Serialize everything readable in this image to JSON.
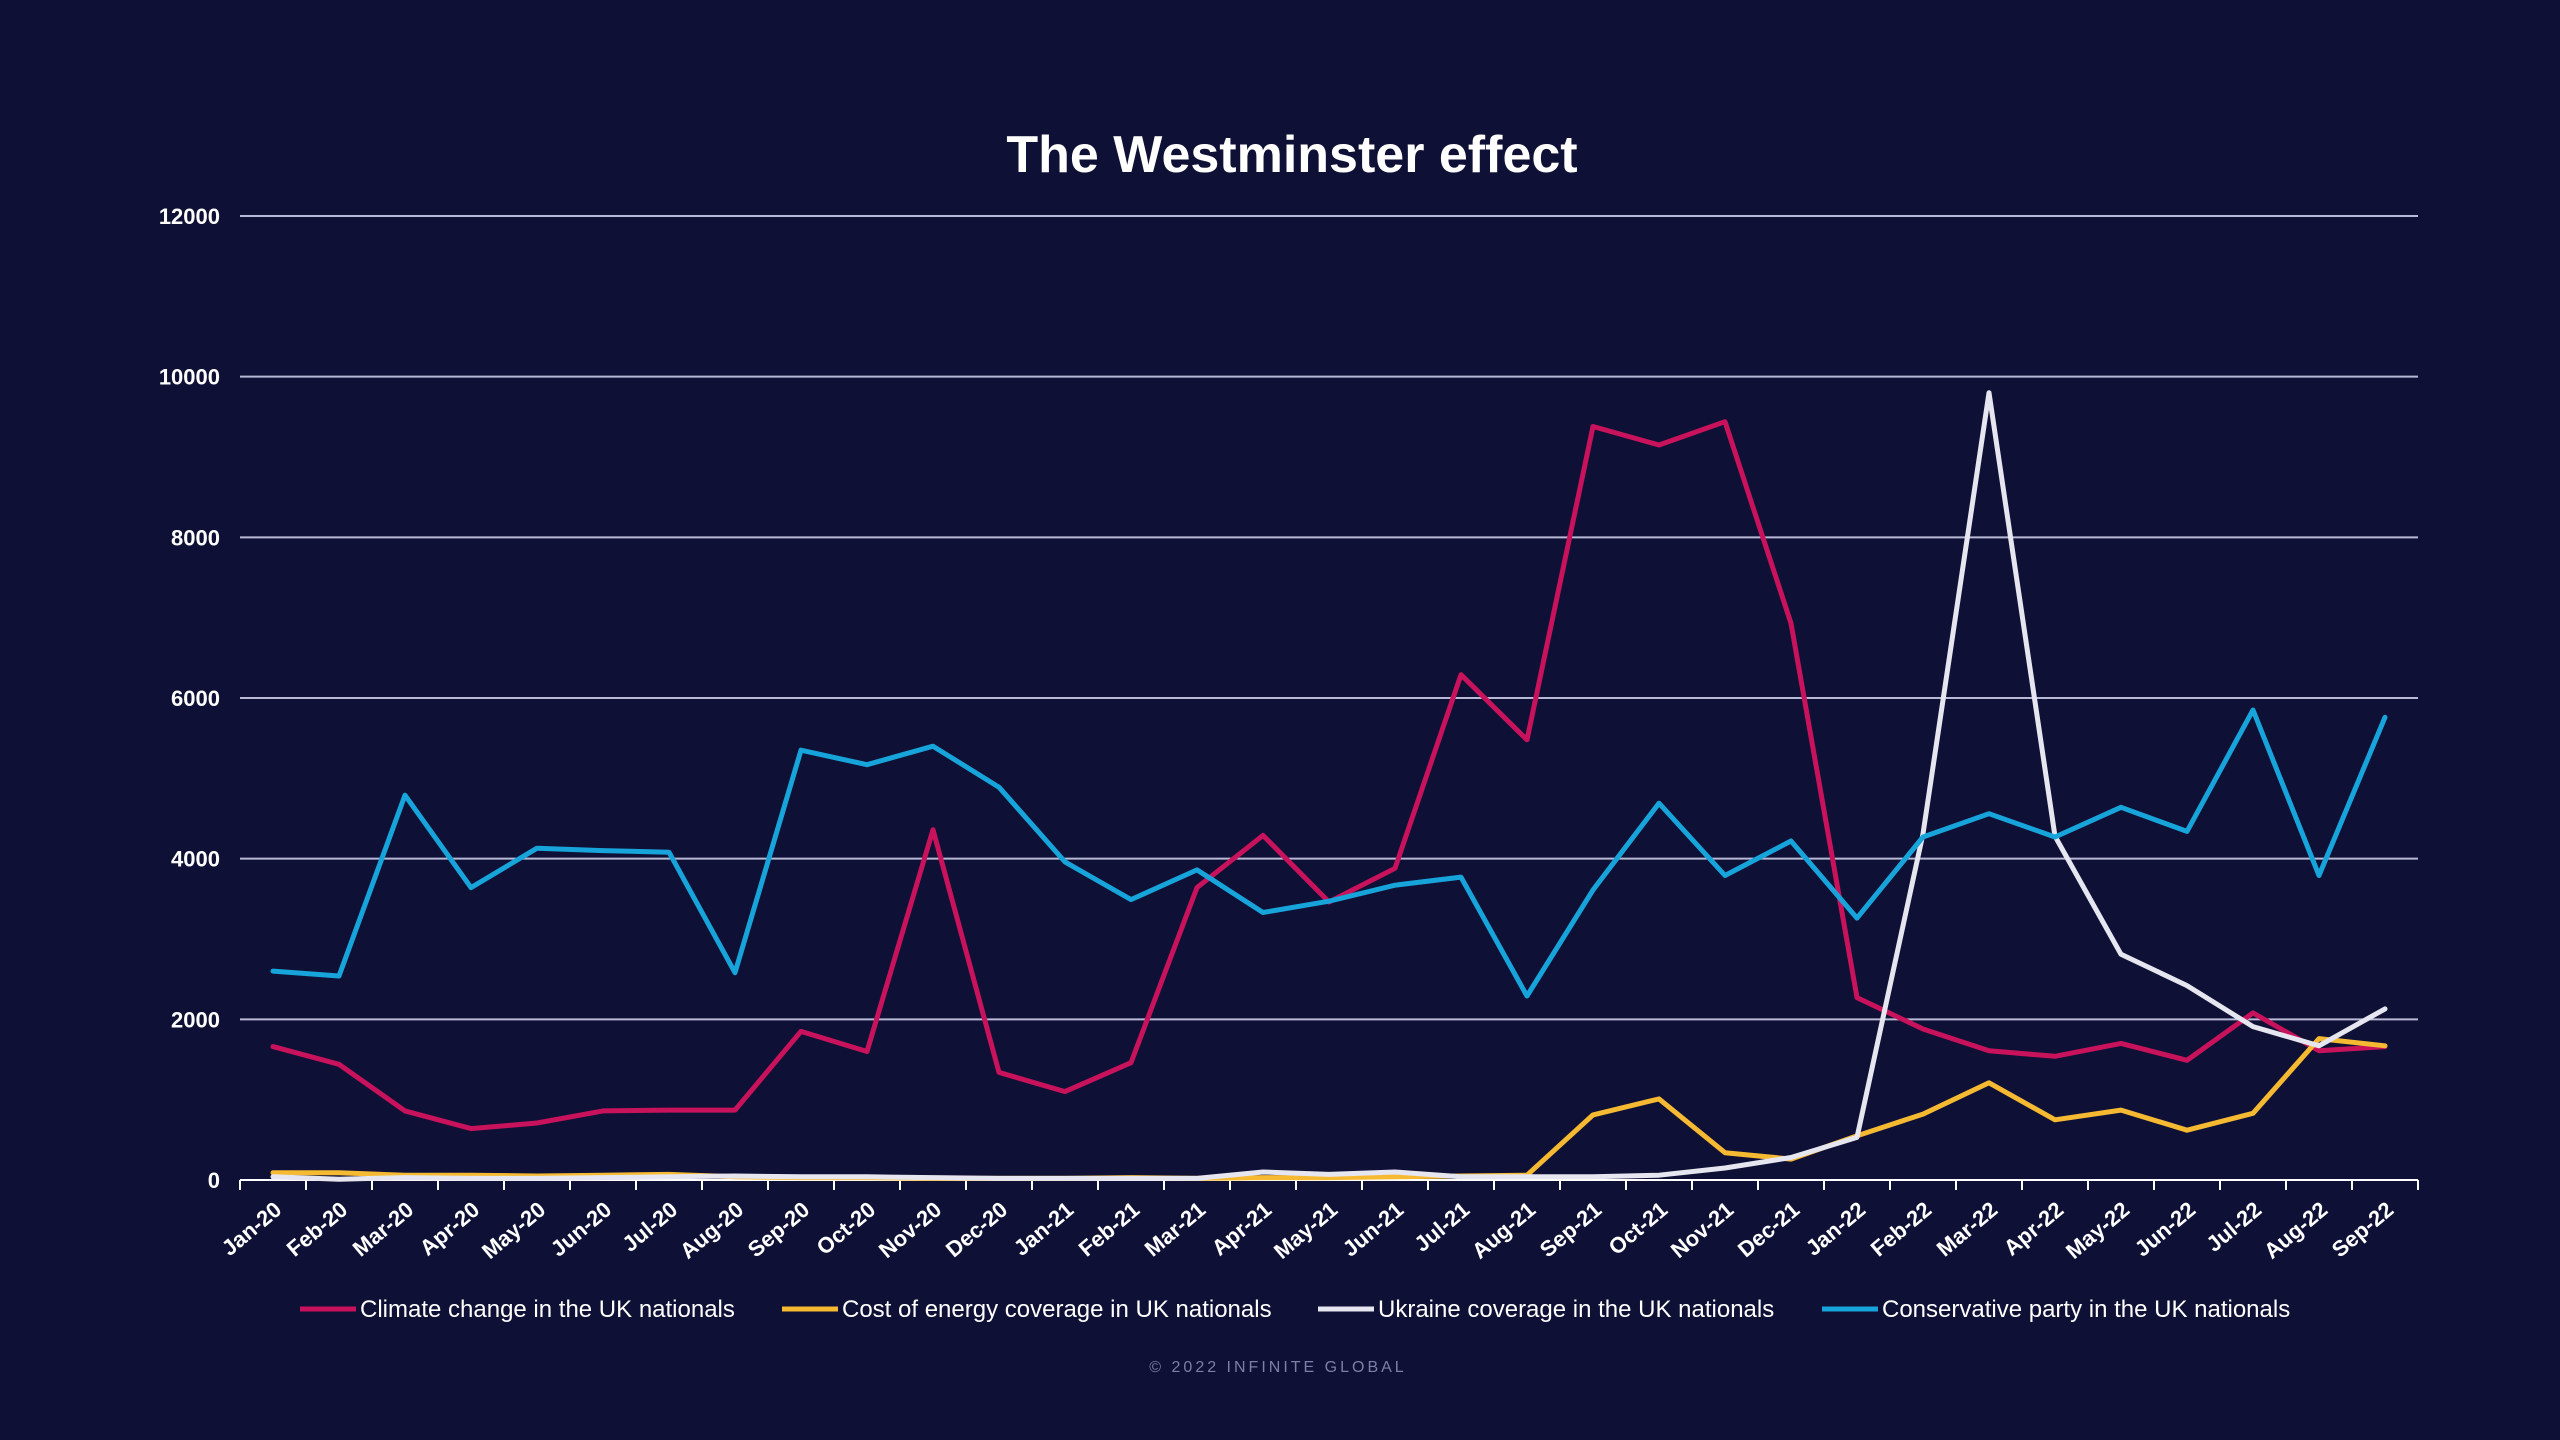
{
  "footer": "© 2022 INFINITE GLOBAL",
  "colors": {
    "background": "#0f1035",
    "grid": "#b8b9d6",
    "axis": "#ffffff"
  },
  "chart_data": {
    "type": "line",
    "title": "The Westminster effect",
    "xlabel": "",
    "ylabel": "",
    "ylim": [
      0,
      12000
    ],
    "yticks": [
      0,
      2000,
      4000,
      6000,
      8000,
      10000,
      12000
    ],
    "grid": true,
    "legend_position": "bottom",
    "categories": [
      "Jan-20",
      "Feb-20",
      "Mar-20",
      "Apr-20",
      "May-20",
      "Jun-20",
      "Jul-20",
      "Aug-20",
      "Sep-20",
      "Oct-20",
      "Nov-20",
      "Dec-20",
      "Jan-21",
      "Feb-21",
      "Mar-21",
      "Apr-21",
      "May-21",
      "Jun-21",
      "Jul-21",
      "Aug-21",
      "Sep-21",
      "Oct-21",
      "Nov-21",
      "Dec-21",
      "Jan-22",
      "Feb-22",
      "Mar-22",
      "Apr-22",
      "May-22",
      "Jun-22",
      "Jul-22",
      "Aug-22",
      "Sep-22"
    ],
    "series": [
      {
        "name": "Climate change in the UK nationals",
        "color": "#c8135c",
        "values": [
          1660,
          1440,
          860,
          640,
          710,
          860,
          870,
          870,
          1850,
          1600,
          4360,
          1340,
          1100,
          1460,
          3640,
          4290,
          3460,
          3880,
          6290,
          5480,
          9380,
          9150,
          9440,
          6930,
          2270,
          1880,
          1610,
          1540,
          1700,
          1490,
          2080,
          1610,
          1660
        ]
      },
      {
        "name": "Cost of energy coverage in UK nationals",
        "color": "#f6b932",
        "values": [
          90,
          90,
          60,
          60,
          50,
          60,
          70,
          40,
          30,
          30,
          20,
          20,
          20,
          30,
          20,
          30,
          30,
          40,
          50,
          60,
          810,
          1010,
          340,
          260,
          550,
          820,
          1210,
          750,
          870,
          620,
          830,
          1760,
          1670
        ]
      },
      {
        "name": "Ukraine coverage in the UK nationals",
        "color": "#e6e6f0",
        "values": [
          40,
          10,
          30,
          20,
          20,
          30,
          40,
          50,
          40,
          40,
          30,
          20,
          20,
          20,
          20,
          100,
          70,
          100,
          40,
          40,
          40,
          60,
          150,
          280,
          530,
          4310,
          9800,
          4280,
          2810,
          2420,
          1910,
          1670,
          2130
        ]
      },
      {
        "name": "Conservative party in the UK nationals",
        "color": "#17a4da",
        "values": [
          2600,
          2540,
          4790,
          3640,
          4130,
          4100,
          4080,
          2580,
          5350,
          5170,
          5400,
          4890,
          3960,
          3490,
          3860,
          3330,
          3470,
          3670,
          3770,
          2290,
          3610,
          4690,
          3790,
          4220,
          3260,
          4270,
          4560,
          4270,
          4640,
          4340,
          5850,
          3790,
          5760
        ]
      }
    ]
  }
}
